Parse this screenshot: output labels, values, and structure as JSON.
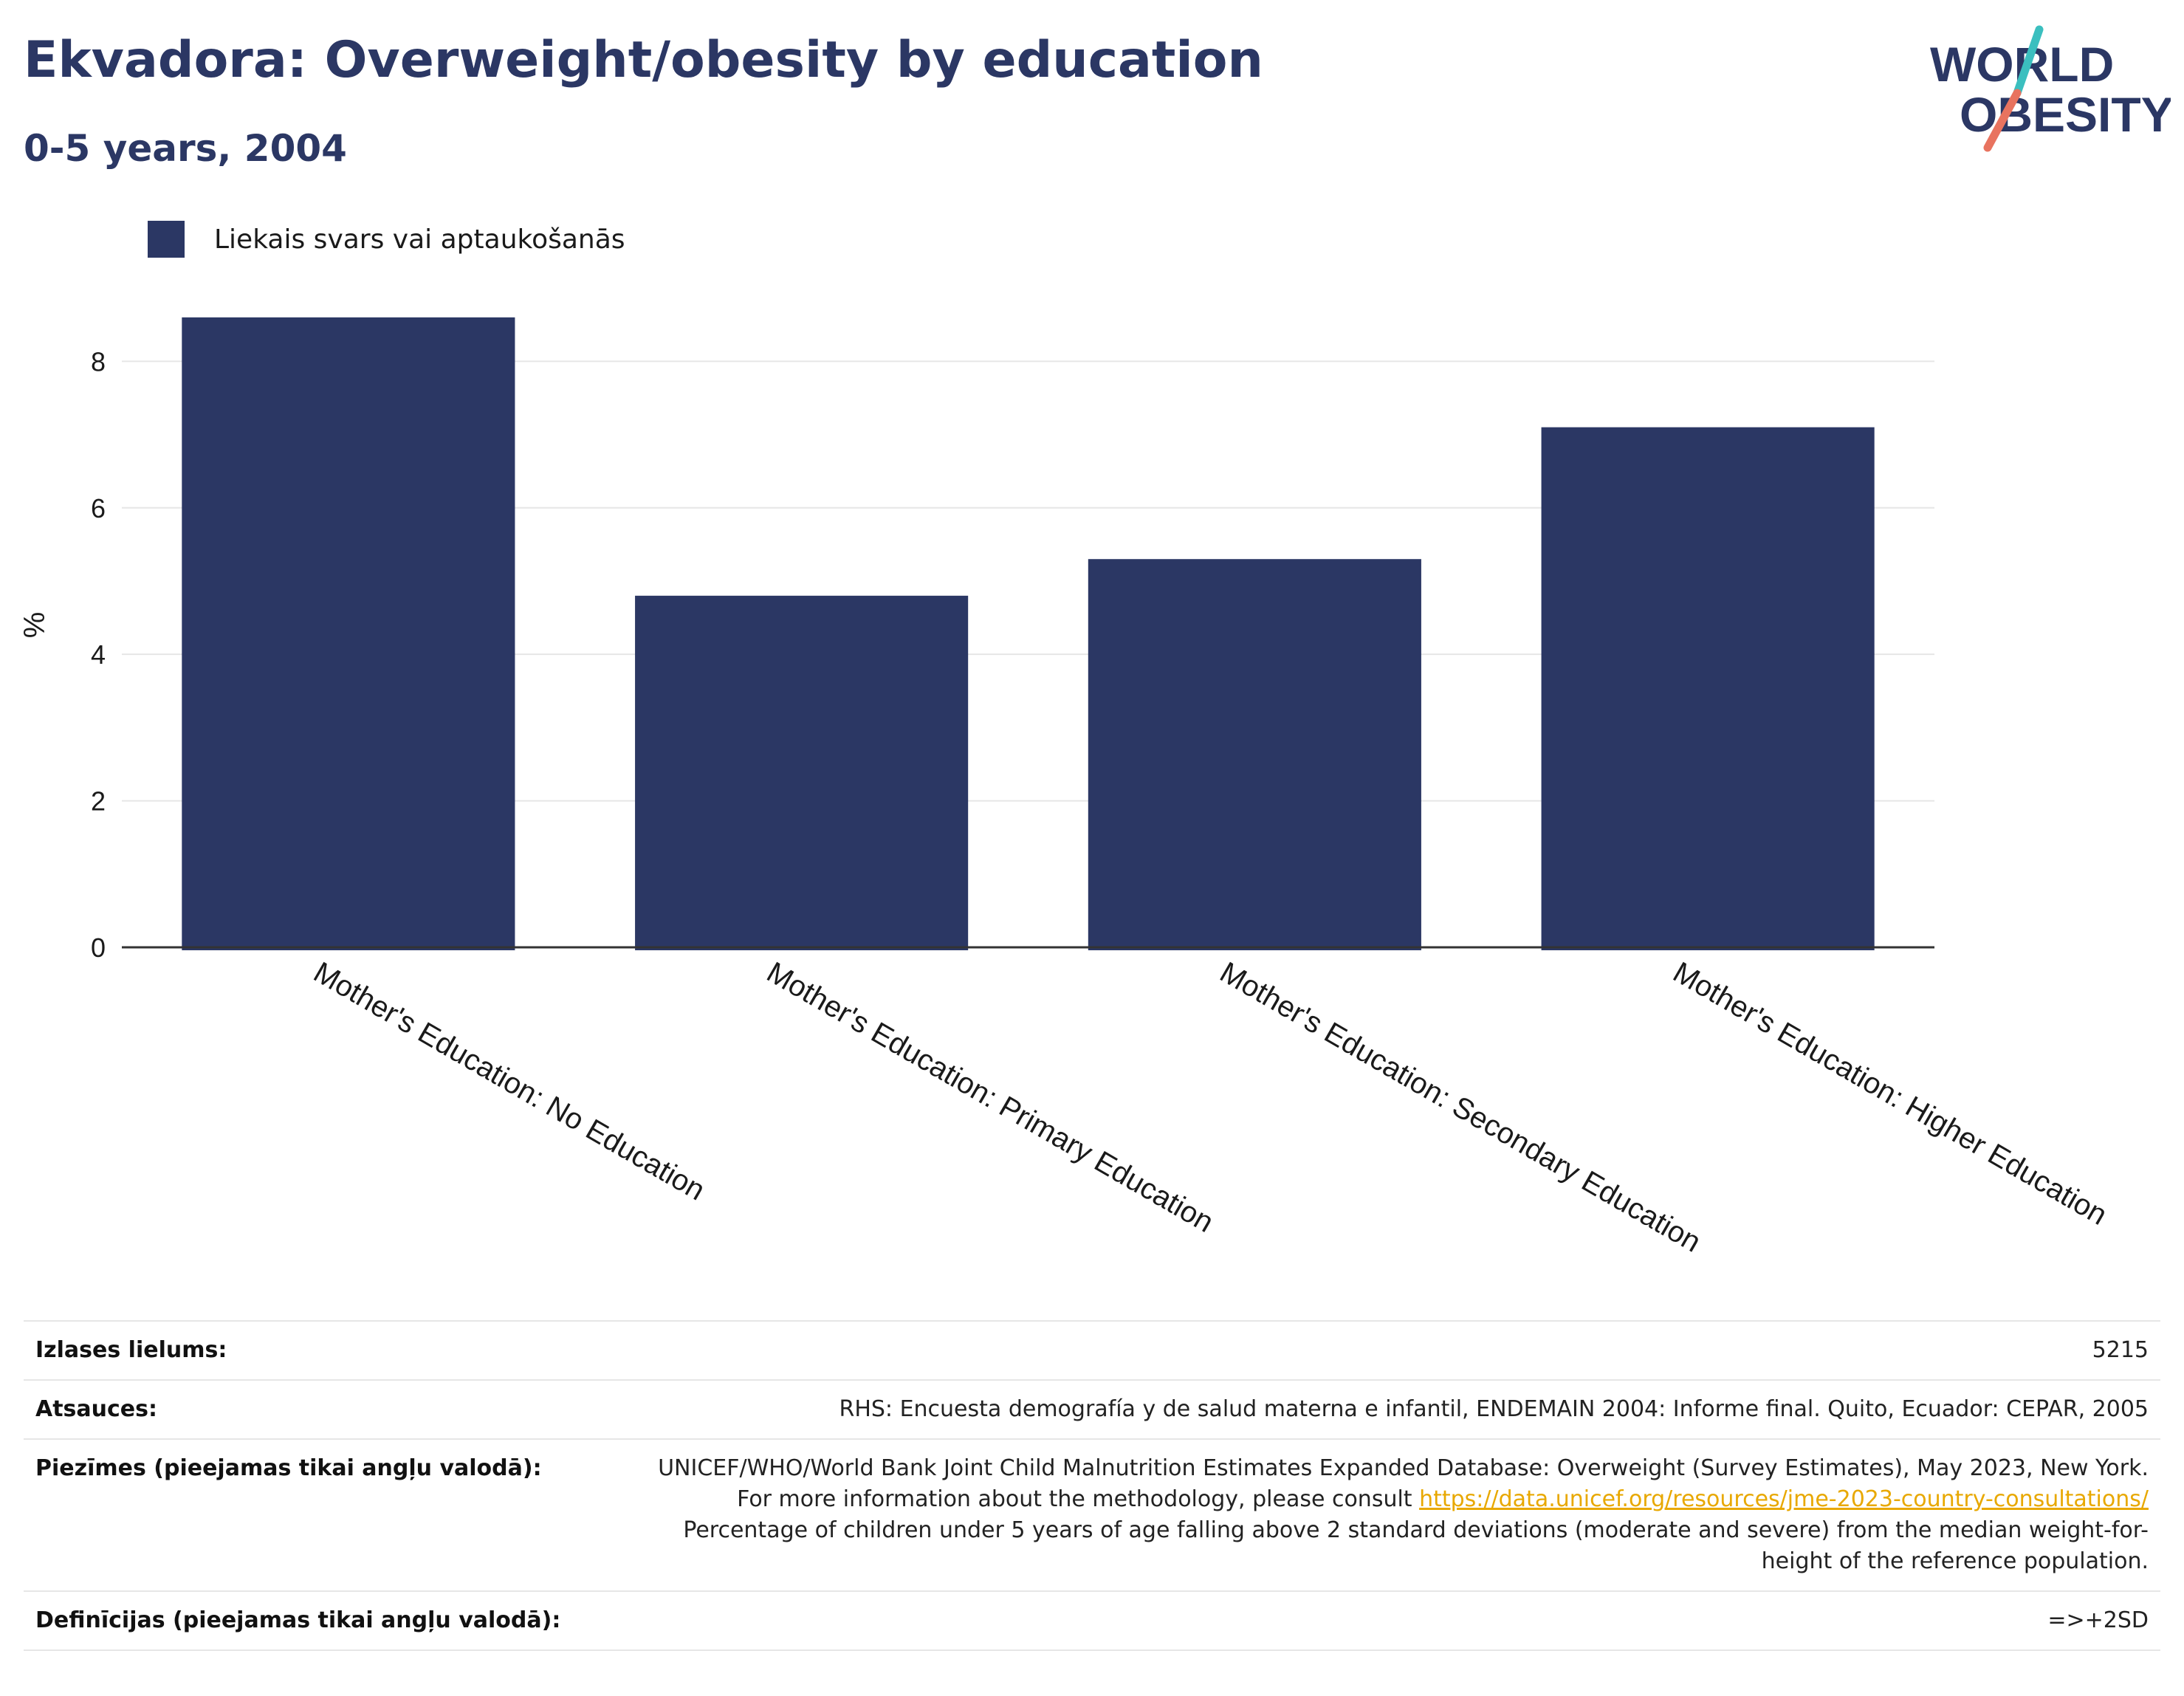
{
  "title": "Ekvadora: Overweight/obesity by education",
  "subtitle": "0-5 years, 2004",
  "logo": {
    "line1": "WORLD",
    "line2": "OBESITY",
    "navy": "#2b3764",
    "teal": "#3bbfbf",
    "coral": "#e8735f"
  },
  "colors": {
    "bar": "#2b3764",
    "gridline": "#e6e6e6",
    "axis": "#333333",
    "link": "#e8a800"
  },
  "chart_data": {
    "type": "bar",
    "categories": [
      "Mother's Education: No Education",
      "Mother's Education: Primary Education",
      "Mother's Education: Secondary Education",
      "Mother's Education: Higher Education"
    ],
    "series": [
      {
        "name": "Liekais svars vai aptaukošanās",
        "values": [
          8.6,
          4.8,
          5.3,
          7.1
        ]
      }
    ],
    "ylabel": "%",
    "ylim": [
      0,
      8.8
    ],
    "yticks": [
      0,
      2,
      4,
      6,
      8
    ],
    "grid": true,
    "legend": "top-left"
  },
  "info": {
    "sample_size": {
      "label": "Izlases lielums:",
      "value": "5215"
    },
    "references": {
      "label": "Atsauces:",
      "value": "RHS: Encuesta demografía y de salud materna e infantil, ENDEMAIN 2004: Informe final. Quito, Ecuador: CEPAR, 2005"
    },
    "notes": {
      "label": "Piezīmes (pieejamas tikai angļu valodā):",
      "text_before": "UNICEF/WHO/World Bank Joint Child Malnutrition Estimates Expanded Database: Overweight (Survey Estimates), May 2023, New York. For more information about the methodology, please consult ",
      "link": "https://data.unicef.org/resources/jme-2023-country-consultations/",
      "text_after": " Percentage of children under 5 years of age falling above 2 standard deviations (moderate and severe) from the median weight-for-height of the reference population."
    },
    "definitions": {
      "label": "Definīcijas (pieejamas tikai angļu valodā):",
      "value": "=>+2SD"
    }
  }
}
